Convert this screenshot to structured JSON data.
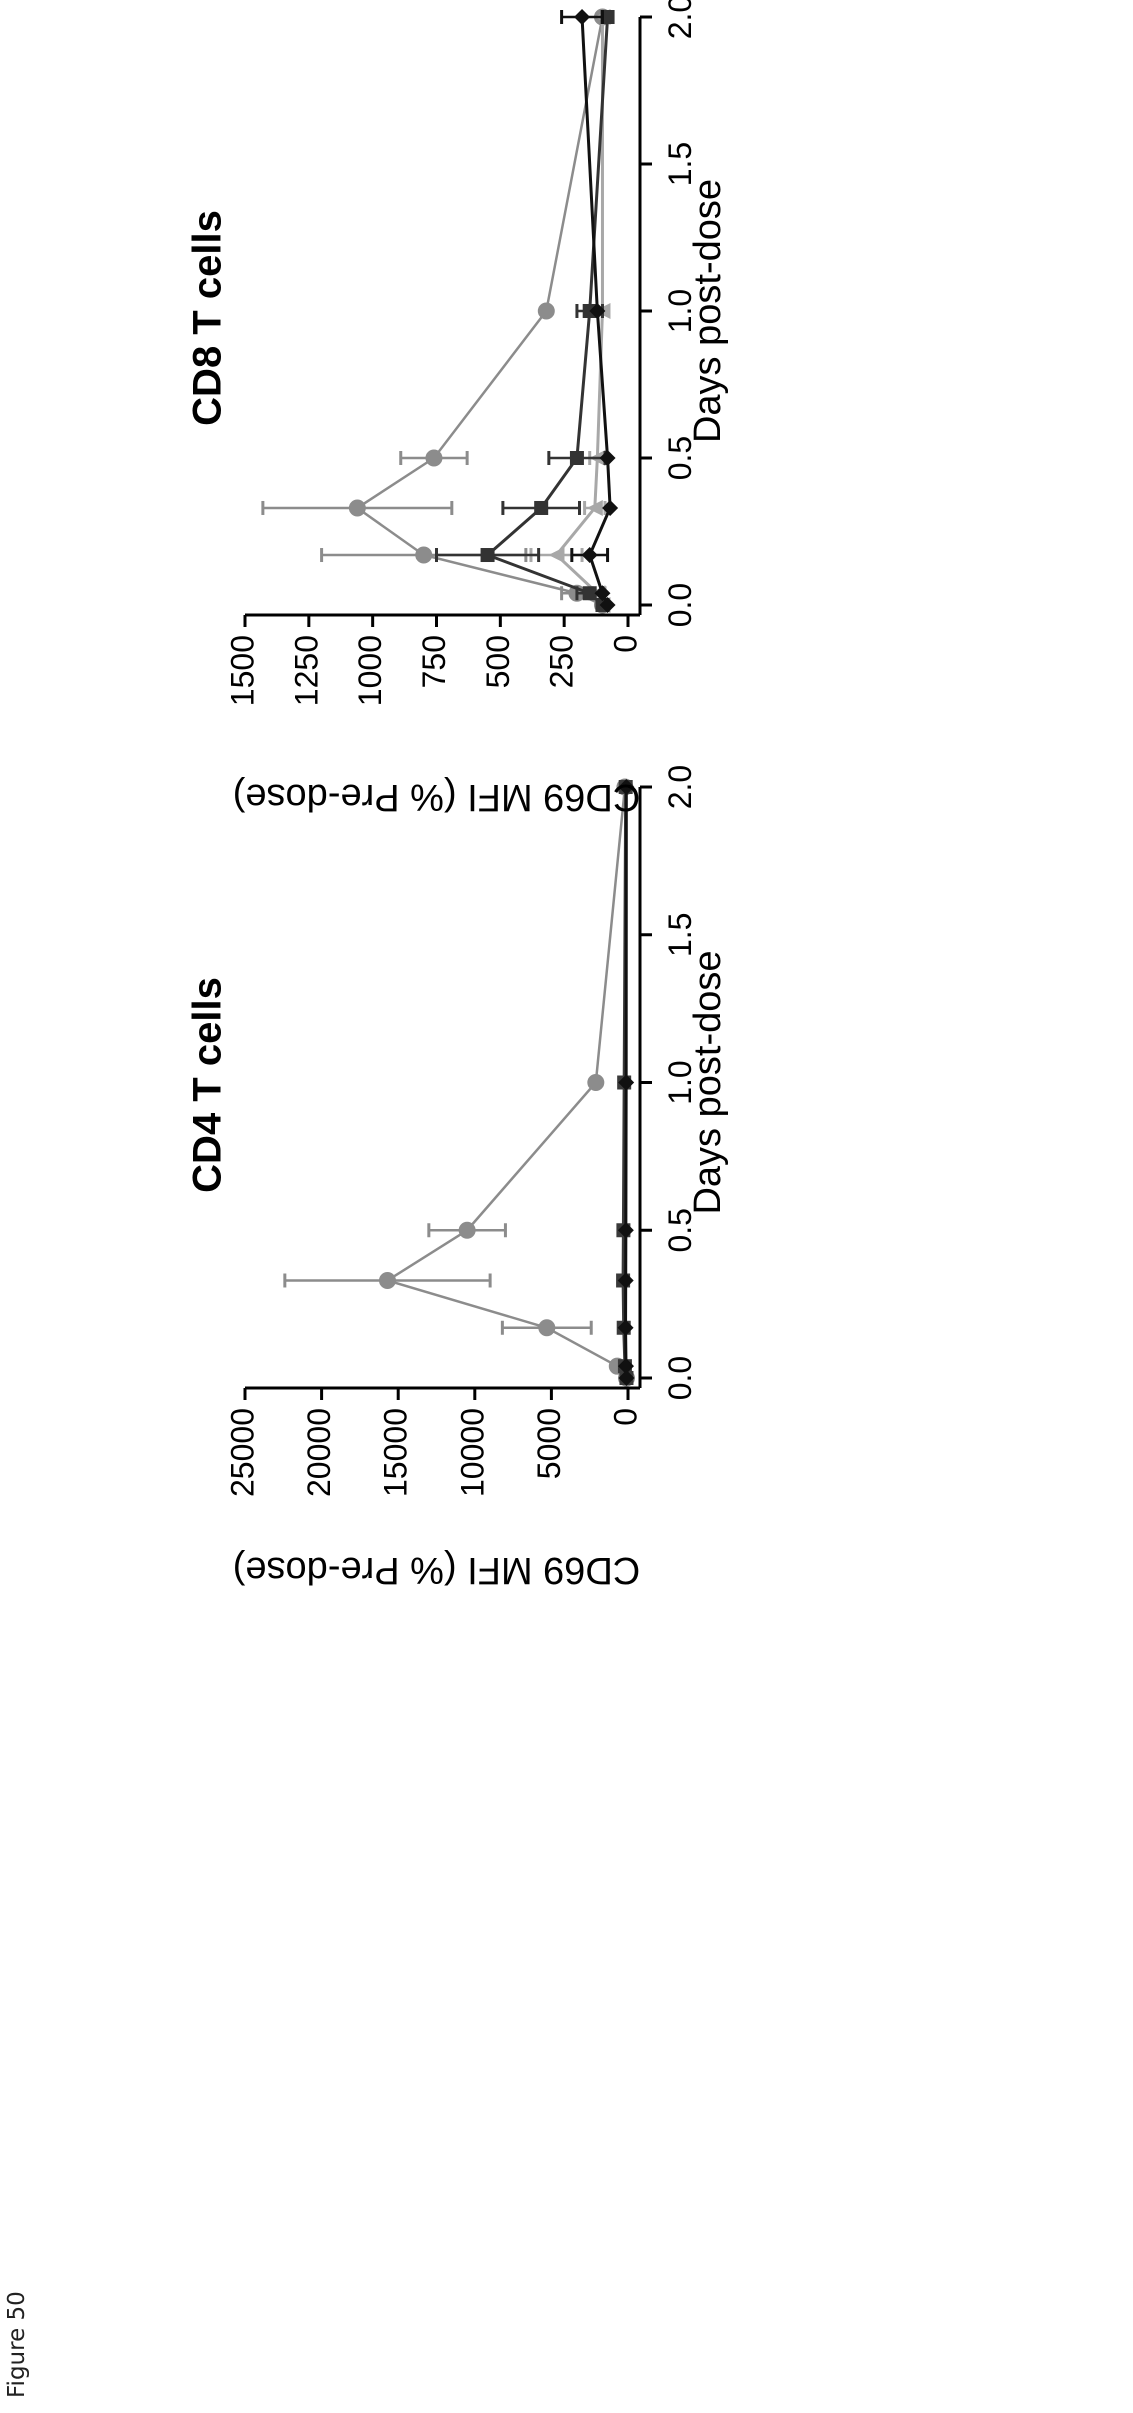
{
  "figure": {
    "label": "Figure 50"
  },
  "chart_data": [
    {
      "type": "line",
      "title": "CD4 T cells",
      "xlabel": "Days post-dose",
      "ylabel": "CD69 MFI (% Pre-dose)",
      "xlim": [
        0.0,
        2.0
      ],
      "ylim": [
        0,
        25000
      ],
      "x_ticks": [
        "0.0",
        "0.5",
        "1.0",
        "1.5",
        "2.0"
      ],
      "y_ticks": [
        "0",
        "5000",
        "10000",
        "15000",
        "20000",
        "25000"
      ],
      "series": [
        {
          "color": "#8c8c8c",
          "marker": "circle",
          "points": [
            {
              "x": 0.0,
              "y": 100
            },
            {
              "x": 0.04,
              "y": 700,
              "err": 150
            },
            {
              "x": 0.17,
              "y": 5300,
              "err": 2900
            },
            {
              "x": 0.33,
              "y": 15700,
              "err": 6700
            },
            {
              "x": 0.5,
              "y": 10500,
              "err": 2500
            },
            {
              "x": 1.0,
              "y": 2100
            },
            {
              "x": 2.0,
              "y": 200
            }
          ]
        },
        {
          "color": "#3a3a3a",
          "marker": "square",
          "points": [
            {
              "x": 0.0,
              "y": 100
            },
            {
              "x": 0.04,
              "y": 200
            },
            {
              "x": 0.17,
              "y": 280
            },
            {
              "x": 0.33,
              "y": 320
            },
            {
              "x": 0.5,
              "y": 300
            },
            {
              "x": 1.0,
              "y": 250
            },
            {
              "x": 2.0,
              "y": 150
            }
          ]
        },
        {
          "color": "#111111",
          "marker": "diamond",
          "points": [
            {
              "x": 0.0,
              "y": 100
            },
            {
              "x": 0.04,
              "y": 130
            },
            {
              "x": 0.17,
              "y": 160
            },
            {
              "x": 0.33,
              "y": 150
            },
            {
              "x": 0.5,
              "y": 140
            },
            {
              "x": 1.0,
              "y": 120
            },
            {
              "x": 2.0,
              "y": 110
            }
          ]
        }
      ]
    },
    {
      "type": "line",
      "title": "CD8 T cells",
      "xlabel": "Days post-dose",
      "ylabel": "CD69 MFI (% Pre-dose)",
      "xlim": [
        0.0,
        2.0
      ],
      "ylim": [
        0,
        1500
      ],
      "x_ticks": [
        "0.0",
        "0.5",
        "1.0",
        "1.5",
        "2.0"
      ],
      "y_ticks": [
        "0",
        "250",
        "500",
        "750",
        "1000",
        "1250",
        "1500"
      ],
      "series": [
        {
          "color": "#8c8c8c",
          "marker": "circle",
          "points": [
            {
              "x": 0.0,
              "y": 100
            },
            {
              "x": 0.04,
              "y": 200,
              "err": 60
            },
            {
              "x": 0.17,
              "y": 800,
              "err": 400
            },
            {
              "x": 0.33,
              "y": 1060,
              "err": 370
            },
            {
              "x": 0.5,
              "y": 760,
              "err": 130
            },
            {
              "x": 1.0,
              "y": 320
            },
            {
              "x": 2.0,
              "y": 100
            }
          ]
        },
        {
          "color": "#a8a8a8",
          "marker": "triangle",
          "points": [
            {
              "x": 0.0,
              "y": 100
            },
            {
              "x": 0.04,
              "y": 120,
              "err": 30
            },
            {
              "x": 0.17,
              "y": 280,
              "err": 100
            },
            {
              "x": 0.33,
              "y": 130,
              "err": 40
            },
            {
              "x": 0.5,
              "y": 120,
              "err": 30
            },
            {
              "x": 1.0,
              "y": 100
            },
            {
              "x": 2.0,
              "y": 100
            }
          ]
        },
        {
          "color": "#333333",
          "marker": "square",
          "points": [
            {
              "x": 0.0,
              "y": 100
            },
            {
              "x": 0.04,
              "y": 150,
              "err": 50
            },
            {
              "x": 0.17,
              "y": 550,
              "err": 200
            },
            {
              "x": 0.33,
              "y": 340,
              "err": 150
            },
            {
              "x": 0.5,
              "y": 200,
              "err": 110
            },
            {
              "x": 1.0,
              "y": 150,
              "err": 50
            },
            {
              "x": 2.0,
              "y": 80
            }
          ]
        },
        {
          "color": "#111111",
          "marker": "diamond",
          "points": [
            {
              "x": 0.0,
              "y": 80
            },
            {
              "x": 0.04,
              "y": 100
            },
            {
              "x": 0.17,
              "y": 150,
              "err": 70
            },
            {
              "x": 0.33,
              "y": 70
            },
            {
              "x": 0.5,
              "y": 80
            },
            {
              "x": 1.0,
              "y": 120
            },
            {
              "x": 2.0,
              "y": 180,
              "err": 80
            }
          ]
        }
      ]
    }
  ]
}
